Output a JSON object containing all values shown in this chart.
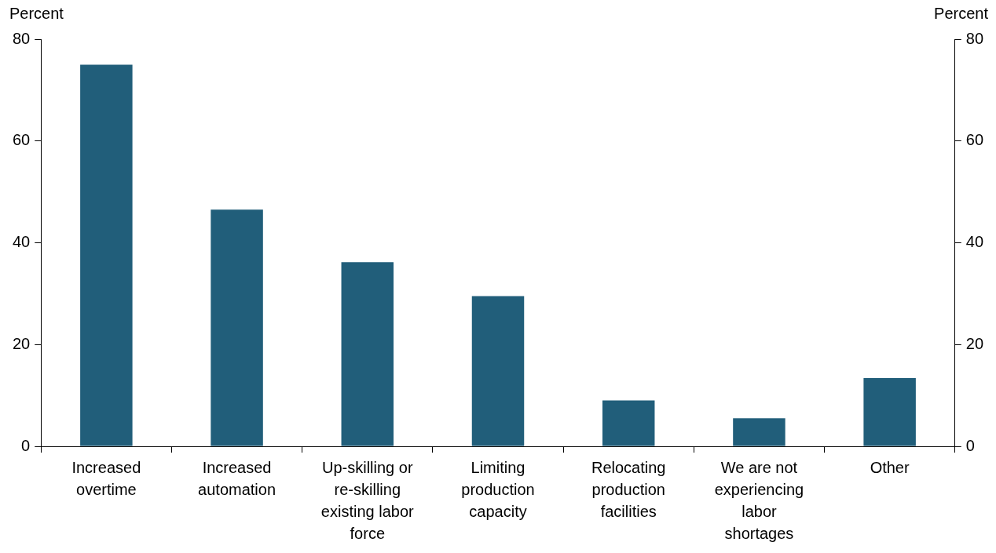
{
  "chart_data": {
    "type": "bar",
    "ylabel": "Percent",
    "y2label": "Percent",
    "categories": [
      "Increased overtime",
      "Increased automation",
      "Up-skilling or re-skilling existing labor force",
      "Limiting production capacity",
      "Relocating production facilities",
      "We are not experiencing labor shortages",
      "Other"
    ],
    "values": [
      75,
      46.5,
      36.2,
      29.5,
      9,
      5.5,
      13.4
    ],
    "color": "#215e7a",
    "ylim": [
      0,
      80
    ],
    "yticks": [
      0,
      20,
      40,
      60,
      80
    ],
    "y2lim": [
      0,
      80
    ],
    "y2ticks": [
      0,
      20,
      40,
      60,
      80
    ]
  }
}
